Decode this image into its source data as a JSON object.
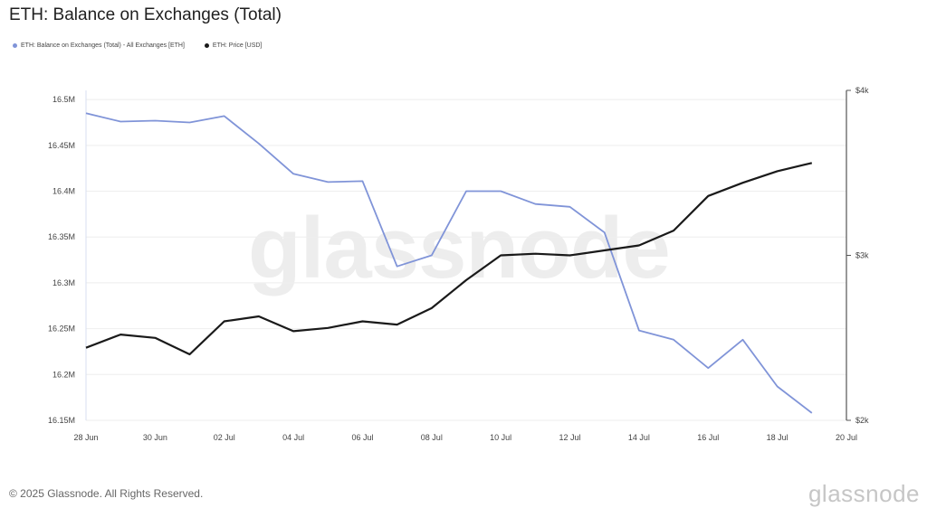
{
  "title": "ETH: Balance on Exchanges (Total)",
  "legend": [
    {
      "label": "ETH: Balance on Exchanges (Total) - All Exchanges [ETH]",
      "color": "#8094d8"
    },
    {
      "label": "ETH: Price [USD]",
      "color": "#1a1a1a"
    }
  ],
  "watermark": "glassnode",
  "footer": {
    "copyright": "© 2025 Glassnode. All Rights Reserved.",
    "brand": "glassnode"
  },
  "chart_data": {
    "type": "line",
    "x": [
      "28 Jun",
      "29 Jun",
      "30 Jun",
      "01 Jul",
      "02 Jul",
      "03 Jul",
      "04 Jul",
      "05 Jul",
      "06 Jul",
      "07 Jul",
      "08 Jul",
      "09 Jul",
      "10 Jul",
      "11 Jul",
      "12 Jul",
      "13 Jul",
      "14 Jul",
      "15 Jul",
      "16 Jul",
      "17 Jul",
      "18 Jul",
      "19 Jul"
    ],
    "x_ticks": [
      "28 Jun",
      "30 Jun",
      "02 Jul",
      "04 Jul",
      "06 Jul",
      "08 Jul",
      "10 Jul",
      "12 Jul",
      "14 Jul",
      "16 Jul",
      "18 Jul",
      "20 Jul"
    ],
    "y_left_ticks": [
      "16.15M",
      "16.2M",
      "16.25M",
      "16.3M",
      "16.35M",
      "16.4M",
      "16.45M",
      "16.5M"
    ],
    "y_right_ticks": [
      "$2k",
      "$3k",
      "$4k"
    ],
    "ylim_left": [
      16150000,
      16510000
    ],
    "ylim_right": [
      2000,
      4000
    ],
    "series": [
      {
        "name": "ETH: Balance on Exchanges (Total) - All Exchanges [ETH]",
        "axis": "left",
        "color": "#8094d8",
        "values": [
          16485000,
          16476000,
          16477000,
          16475000,
          16482000,
          16452000,
          16419000,
          16410000,
          16411000,
          16318000,
          16330000,
          16400000,
          16400000,
          16386000,
          16383000,
          16355000,
          16248000,
          16238000,
          16207000,
          16238000,
          16187000,
          16158000
        ]
      },
      {
        "name": "ETH: Price [USD]",
        "axis": "right",
        "color": "#1a1a1a",
        "values": [
          2440,
          2520,
          2500,
          2400,
          2600,
          2630,
          2540,
          2560,
          2600,
          2580,
          2680,
          2850,
          3000,
          3010,
          3000,
          3030,
          3060,
          3150,
          3360,
          3440,
          3510,
          3560
        ]
      }
    ],
    "grid": true,
    "legend_position": "top-left"
  }
}
